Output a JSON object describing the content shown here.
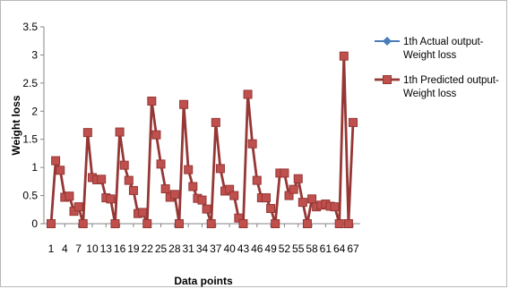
{
  "chart_data": {
    "type": "line",
    "title": "",
    "xlabel": "Data points",
    "ylabel": "Weight loss",
    "ylim": [
      0,
      3.5
    ],
    "y_ticks": [
      "0",
      "0.5",
      "1",
      "1.5",
      "2",
      "2.5",
      "3",
      "3.5"
    ],
    "x_tick_labels": [
      "1",
      "4",
      "7",
      "10",
      "13",
      "16",
      "19",
      "22",
      "25",
      "28",
      "31",
      "34",
      "37",
      "40",
      "43",
      "46",
      "49",
      "52",
      "55",
      "58",
      "61",
      "64",
      "67"
    ],
    "grid": false,
    "legend_position": "right",
    "x": [
      1,
      2,
      3,
      4,
      5,
      6,
      7,
      8,
      9,
      10,
      11,
      12,
      13,
      14,
      15,
      16,
      17,
      18,
      19,
      20,
      21,
      22,
      23,
      24,
      25,
      26,
      27,
      28,
      29,
      30,
      31,
      32,
      33,
      34,
      35,
      36,
      37,
      38,
      39,
      40,
      41,
      42,
      43,
      44,
      45,
      46,
      47,
      48,
      49,
      50,
      51,
      52,
      53,
      54,
      55,
      56,
      57,
      58,
      59,
      60,
      61,
      62,
      63,
      64,
      65,
      66,
      67
    ],
    "series": [
      {
        "name": "1th Actual output-Weight loss",
        "color": "#4a7ebb",
        "marker": "diamond",
        "values": [
          0,
          1.12,
          0.95,
          0.47,
          0.49,
          0.22,
          0.3,
          0,
          1.62,
          0.82,
          0.78,
          0.79,
          0.46,
          0.44,
          0,
          1.63,
          1.04,
          0.77,
          0.59,
          0.18,
          0.2,
          0,
          2.18,
          1.58,
          1.06,
          0.62,
          0.47,
          0.52,
          0,
          2.12,
          0.96,
          0.66,
          0.45,
          0.42,
          0.26,
          0,
          1.8,
          0.98,
          0.58,
          0.61,
          0.5,
          0.1,
          0,
          2.3,
          1.42,
          0.77,
          0.46,
          0.46,
          0.27,
          0,
          0.9,
          0.9,
          0.5,
          0.61,
          0.8,
          0.38,
          0,
          0.44,
          0.3,
          0.33,
          0.35,
          0.31,
          0.3,
          0,
          2.98,
          0,
          1.8
        ]
      },
      {
        "name": "1th Predicted output-Weight loss",
        "color": "#953735",
        "marker": "square",
        "values": [
          0,
          1.12,
          0.95,
          0.47,
          0.49,
          0.22,
          0.3,
          0,
          1.62,
          0.82,
          0.78,
          0.79,
          0.46,
          0.44,
          0,
          1.63,
          1.04,
          0.77,
          0.59,
          0.18,
          0.2,
          0,
          2.18,
          1.58,
          1.06,
          0.62,
          0.47,
          0.52,
          0,
          2.12,
          0.96,
          0.66,
          0.45,
          0.42,
          0.26,
          0,
          1.8,
          0.98,
          0.58,
          0.61,
          0.5,
          0.1,
          0,
          2.3,
          1.42,
          0.77,
          0.46,
          0.46,
          0.27,
          0,
          0.9,
          0.9,
          0.5,
          0.61,
          0.8,
          0.38,
          0,
          0.44,
          0.3,
          0.33,
          0.35,
          0.31,
          0.3,
          0,
          2.98,
          0,
          1.8
        ]
      }
    ]
  }
}
